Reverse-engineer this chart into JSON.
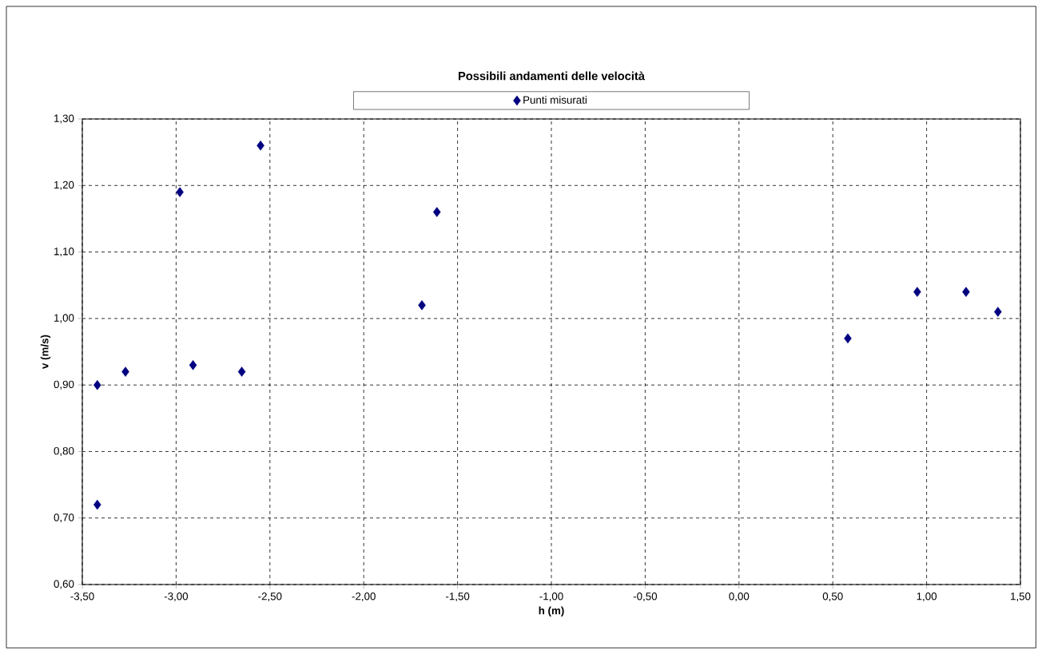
{
  "chart_data": {
    "type": "scatter",
    "title": "Possibili andamenti delle velocità",
    "xlabel": "h (m)",
    "ylabel": "v (m/s)",
    "series": [
      {
        "name": "Punti misurati",
        "color": "#000080",
        "x": [
          -3.42,
          -3.42,
          -3.27,
          -2.98,
          -2.91,
          -2.65,
          -2.55,
          -1.69,
          -1.61,
          0.58,
          0.95,
          1.21,
          1.38
        ],
        "values": [
          0.72,
          0.9,
          0.92,
          1.19,
          0.93,
          0.92,
          1.26,
          1.02,
          1.16,
          0.97,
          1.04,
          1.04,
          1.01
        ]
      }
    ],
    "xlim": [
      -3.5,
      1.5
    ],
    "ylim": [
      0.6,
      1.3
    ],
    "xticks": [
      {
        "value": -3.5,
        "label": "-3,50"
      },
      {
        "value": -3.0,
        "label": "-3,00"
      },
      {
        "value": -2.5,
        "label": "-2,50"
      },
      {
        "value": -2.0,
        "label": "-2,00"
      },
      {
        "value": -1.5,
        "label": "-1,50"
      },
      {
        "value": -1.0,
        "label": "-1,00"
      },
      {
        "value": -0.5,
        "label": "-0,50"
      },
      {
        "value": 0.0,
        "label": "0,00"
      },
      {
        "value": 0.5,
        "label": "0,50"
      },
      {
        "value": 1.0,
        "label": "1,00"
      },
      {
        "value": 1.5,
        "label": "1,50"
      }
    ],
    "yticks": [
      {
        "value": 0.6,
        "label": "0,60"
      },
      {
        "value": 0.7,
        "label": "0,70"
      },
      {
        "value": 0.8,
        "label": "0,80"
      },
      {
        "value": 0.9,
        "label": "0,90"
      },
      {
        "value": 1.0,
        "label": "1,00"
      },
      {
        "value": 1.1,
        "label": "1,10"
      },
      {
        "value": 1.2,
        "label": "1,20"
      },
      {
        "value": 1.3,
        "label": "1,30"
      }
    ],
    "grid": true,
    "legend": "top",
    "marker": "diamond",
    "line_style": "none"
  }
}
